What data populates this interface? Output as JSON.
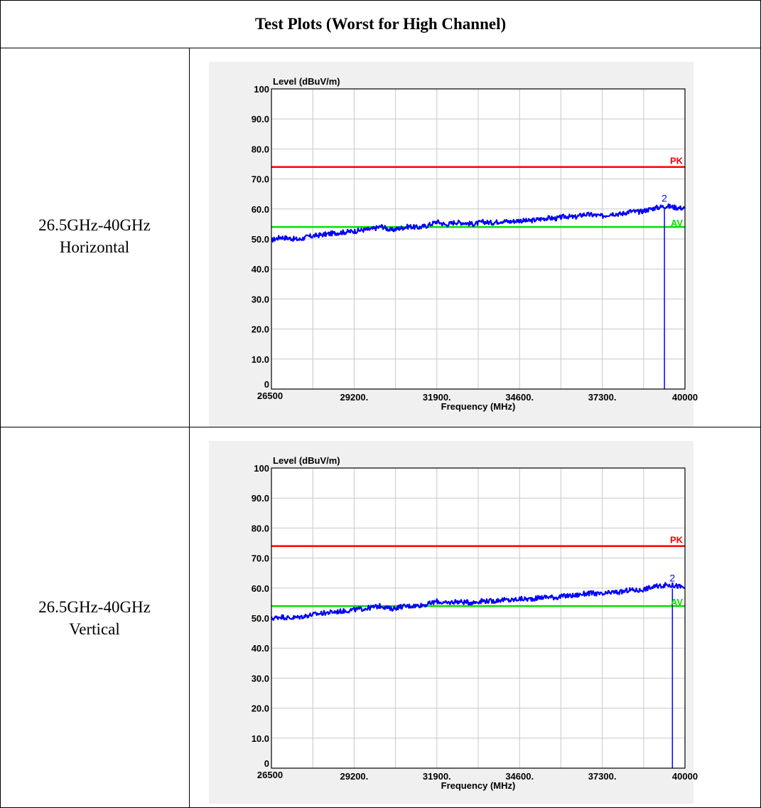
{
  "page": {
    "title": "Test Plots (Worst for High Channel)"
  },
  "rows": [
    {
      "band": "26.5GHz-40GHz",
      "polarization": "Horizontal"
    },
    {
      "band": "26.5GHz-40GHz",
      "polarization": "Vertical"
    }
  ],
  "chart_data": [
    {
      "type": "line",
      "ylabel": "Level (dBuV/m)",
      "xlabel": "Frequency (MHz)",
      "xlim": [
        26500,
        40000
      ],
      "ylim": [
        0,
        100
      ],
      "x_ticks": [
        "26500",
        "29200.",
        "31900.",
        "34600.",
        "37300.",
        "40000"
      ],
      "y_ticks": [
        "0",
        "10.0",
        "20.0",
        "30.0",
        "40.0",
        "50.0",
        "60.0",
        "70.0",
        "80.0",
        "90.0",
        "100"
      ],
      "grid": true,
      "limits": [
        {
          "name": "PK",
          "value": 74,
          "color": "#ff0000"
        },
        {
          "name": "AV",
          "value": 54,
          "color": "#00e000"
        }
      ],
      "series": [
        {
          "color": "#0000ff",
          "x": [
            26500,
            26800,
            27100,
            27400,
            27700,
            28000,
            28300,
            28600,
            28900,
            29200,
            29500,
            29800,
            30100,
            30400,
            30700,
            31000,
            31300,
            31600,
            31900,
            32200,
            32500,
            32800,
            33100,
            33400,
            33700,
            34000,
            34300,
            34600,
            34900,
            35200,
            35500,
            35800,
            36100,
            36400,
            36700,
            37000,
            37300,
            37600,
            37900,
            38200,
            38500,
            38800,
            39100,
            39400,
            39700,
            40000
          ],
          "y": [
            49.6,
            50.6,
            50.2,
            49.8,
            50.8,
            51.2,
            51.6,
            52.0,
            52.3,
            52.6,
            53.0,
            53.3,
            54.2,
            52.9,
            53.6,
            54.2,
            53.8,
            54.5,
            55.8,
            54.7,
            55.6,
            55.4,
            54.9,
            55.7,
            55.4,
            56.0,
            55.8,
            56.2,
            56.0,
            56.5,
            57.0,
            56.8,
            57.6,
            57.2,
            58.2,
            58.0,
            57.6,
            58.5,
            58.3,
            59.2,
            59.0,
            59.8,
            60.5,
            61.0,
            60.5,
            60.2
          ]
        }
      ],
      "markers": [
        {
          "label": "2",
          "x": 39330,
          "y": 61.0
        }
      ]
    },
    {
      "type": "line",
      "ylabel": "Level (dBuV/m)",
      "xlabel": "Frequency (MHz)",
      "xlim": [
        26500,
        40000
      ],
      "ylim": [
        0,
        100
      ],
      "x_ticks": [
        "26500",
        "29200.",
        "31900.",
        "34600.",
        "37300.",
        "40000"
      ],
      "y_ticks": [
        "0",
        "10.0",
        "20.0",
        "30.0",
        "40.0",
        "50.0",
        "60.0",
        "70.0",
        "80.0",
        "90.0",
        "100"
      ],
      "grid": true,
      "limits": [
        {
          "name": "PK",
          "value": 74,
          "color": "#ff0000"
        },
        {
          "name": "AV",
          "value": 54,
          "color": "#00e000"
        }
      ],
      "series": [
        {
          "color": "#0000ff",
          "x": [
            26500,
            26800,
            27100,
            27400,
            27700,
            28000,
            28300,
            28600,
            28900,
            29200,
            29500,
            29800,
            30100,
            30400,
            30700,
            31000,
            31300,
            31600,
            31900,
            32200,
            32500,
            32800,
            33100,
            33400,
            33700,
            34000,
            34300,
            34600,
            34900,
            35200,
            35500,
            35800,
            36100,
            36400,
            36700,
            37000,
            37300,
            37600,
            37900,
            38200,
            38500,
            38800,
            39100,
            39400,
            39700,
            40000
          ],
          "y": [
            49.8,
            50.5,
            50.0,
            50.3,
            50.9,
            51.4,
            51.8,
            52.1,
            52.4,
            52.8,
            53.1,
            53.6,
            54.1,
            53.0,
            53.8,
            54.0,
            54.2,
            54.6,
            55.6,
            54.9,
            55.5,
            55.3,
            55.2,
            55.8,
            55.6,
            56.1,
            55.9,
            56.4,
            56.3,
            56.7,
            57.1,
            56.9,
            57.4,
            57.5,
            58.1,
            58.3,
            57.8,
            58.6,
            58.6,
            59.4,
            59.2,
            60.0,
            60.6,
            61.1,
            60.8,
            60.1
          ]
        }
      ],
      "markers": [
        {
          "label": "2",
          "x": 39590,
          "y": 60.8
        }
      ]
    }
  ]
}
